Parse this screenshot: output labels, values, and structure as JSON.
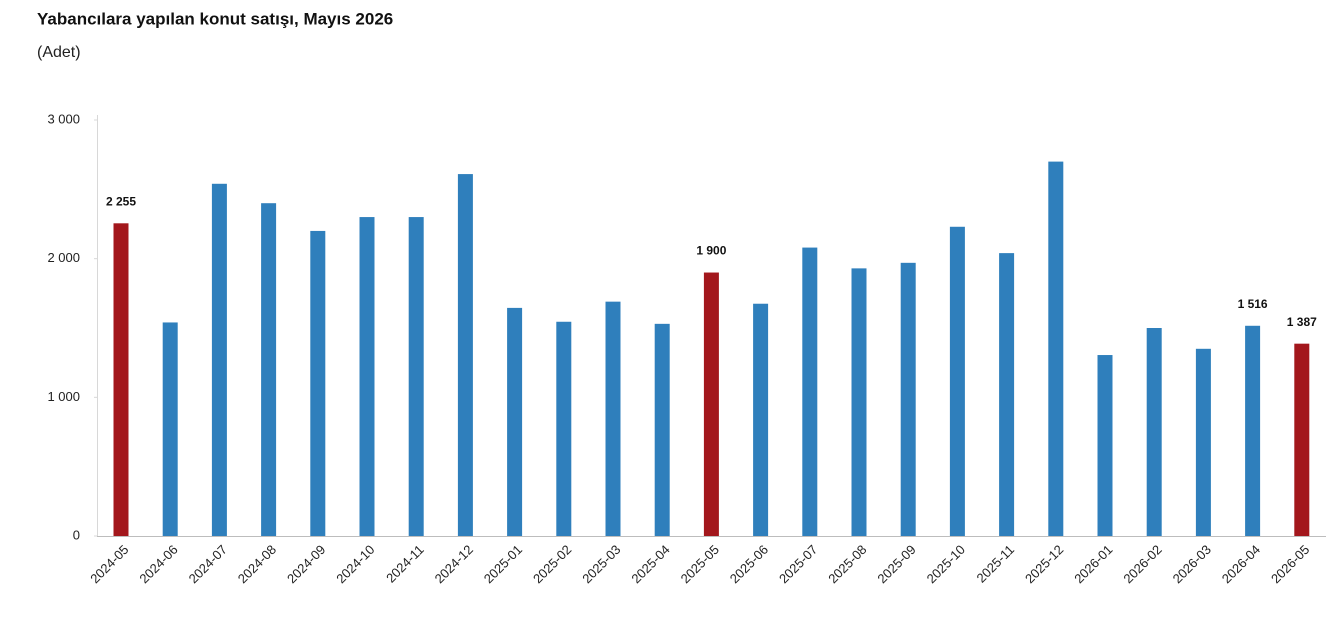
{
  "chart_data": {
    "type": "bar",
    "title": "Yabancılara yapılan konut satışı, Mayıs 2026",
    "subtitle": "(Adet)",
    "categories": [
      "2024-05",
      "2024-06",
      "2024-07",
      "2024-08",
      "2024-09",
      "2024-10",
      "2024-11",
      "2024-12",
      "2025-01",
      "2025-02",
      "2025-03",
      "2025-04",
      "2025-05",
      "2025-06",
      "2025-07",
      "2025-08",
      "2025-09",
      "2025-10",
      "2025-11",
      "2025-12",
      "2026-01",
      "2026-02",
      "2026-03",
      "2026-04",
      "2026-05"
    ],
    "values": [
      2255,
      1540,
      2540,
      2400,
      2200,
      2300,
      2300,
      2610,
      1645,
      1545,
      1690,
      1530,
      1900,
      1675,
      2080,
      1930,
      1970,
      2230,
      2040,
      2700,
      1305,
      1500,
      1350,
      1516,
      1387
    ],
    "value_labels": [
      "2 255",
      null,
      null,
      null,
      null,
      null,
      null,
      null,
      null,
      null,
      null,
      null,
      "1 900",
      null,
      null,
      null,
      null,
      null,
      null,
      null,
      null,
      null,
      null,
      "1 516",
      "1 387"
    ],
    "colors": [
      "#a3171c",
      "#2f7fbc",
      "#2f7fbc",
      "#2f7fbc",
      "#2f7fbc",
      "#2f7fbc",
      "#2f7fbc",
      "#2f7fbc",
      "#2f7fbc",
      "#2f7fbc",
      "#2f7fbc",
      "#2f7fbc",
      "#a3171c",
      "#2f7fbc",
      "#2f7fbc",
      "#2f7fbc",
      "#2f7fbc",
      "#2f7fbc",
      "#2f7fbc",
      "#2f7fbc",
      "#2f7fbc",
      "#2f7fbc",
      "#2f7fbc",
      "#2f7fbc",
      "#a3171c"
    ],
    "ylim": [
      0,
      3000
    ],
    "yticks": [
      0,
      {
        "value": 1000,
        "label": "1 000"
      },
      {
        "value": 2000,
        "label": "2 000"
      },
      {
        "value": 3000,
        "label": "3 000"
      }
    ],
    "grid": false
  }
}
